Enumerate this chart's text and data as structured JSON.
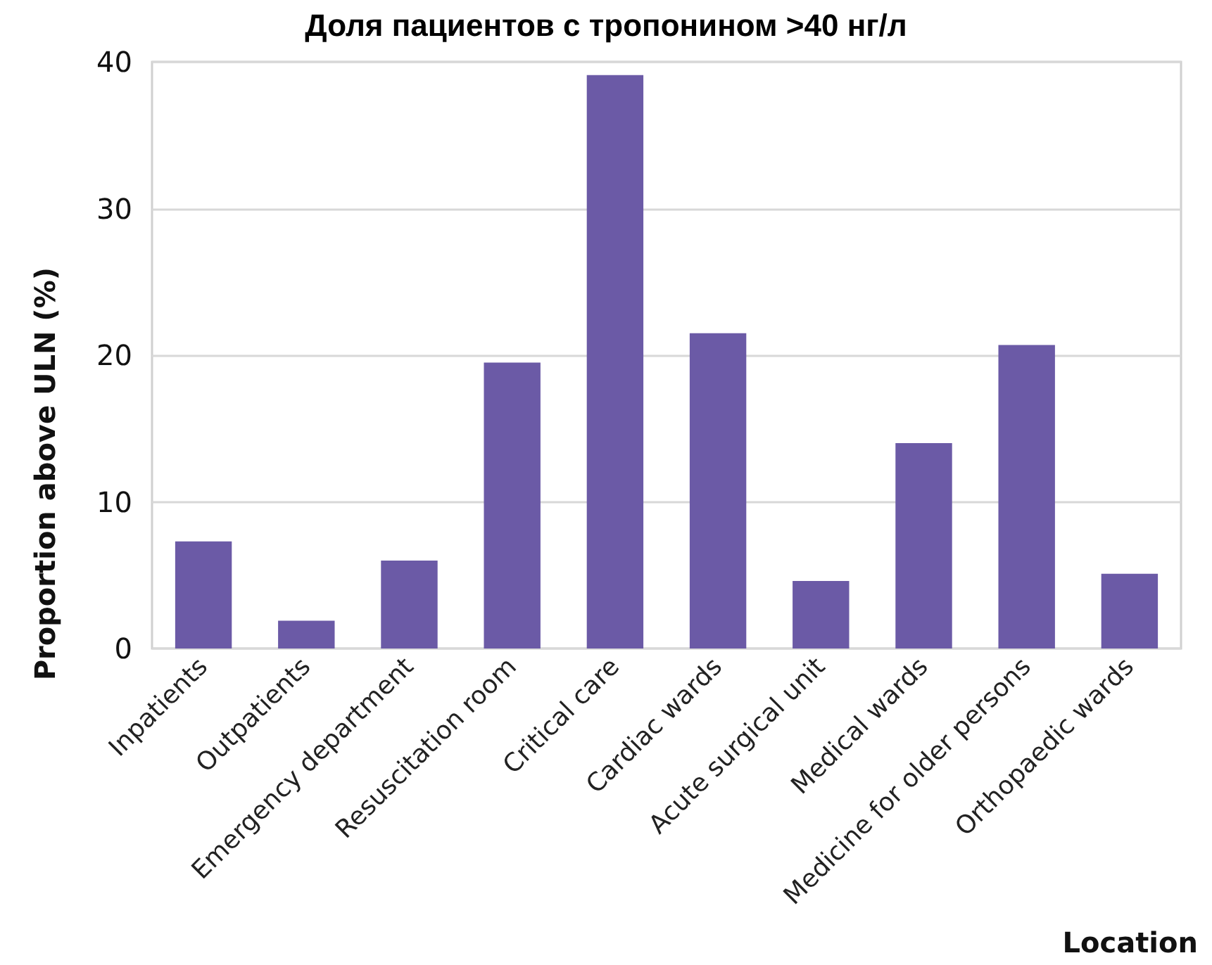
{
  "chart_data": {
    "type": "bar",
    "title": "Доля пациентов с тропонином >40 нг/л",
    "xlabel": "Location",
    "ylabel": "Proportion above ULN (%)",
    "categories": [
      "Inpatients",
      "Outpatients",
      "Emergency department",
      "Resuscitation room",
      "Critical care",
      "Cardiac wards",
      "Acute surgical unit",
      "Medical wards",
      "Medicine for older persons",
      "Orthopaedic wards"
    ],
    "values": [
      7.3,
      1.9,
      6.0,
      19.5,
      39.1,
      21.5,
      4.6,
      14.0,
      20.7,
      5.1
    ],
    "color": "#6b5aa6",
    "ylim": [
      0,
      40
    ],
    "yticks": [
      0,
      10,
      20,
      30,
      40
    ],
    "grid": "y"
  }
}
